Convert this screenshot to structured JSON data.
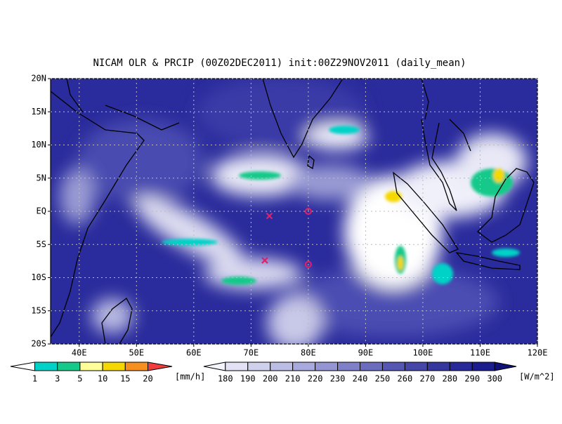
{
  "title": "NICAM OLR & PRCIP (00Z02DEC2011) init:00Z29NOV2011 (daily_mean)",
  "map": {
    "lon_range": [
      35,
      120
    ],
    "lat_range": [
      -20,
      20
    ],
    "lon_ticks": [
      {
        "value": 40,
        "label": "40E"
      },
      {
        "value": 50,
        "label": "50E"
      },
      {
        "value": 60,
        "label": "60E"
      },
      {
        "value": 70,
        "label": "70E"
      },
      {
        "value": 80,
        "label": "80E"
      },
      {
        "value": 90,
        "label": "90E"
      },
      {
        "value": 100,
        "label": "100E"
      },
      {
        "value": 110,
        "label": "110E"
      },
      {
        "value": 120,
        "label": "120E"
      }
    ],
    "lat_ticks": [
      {
        "value": 20,
        "label": "20N"
      },
      {
        "value": 15,
        "label": "15N"
      },
      {
        "value": 10,
        "label": "10N"
      },
      {
        "value": 5,
        "label": "5N"
      },
      {
        "value": 0,
        "label": "EQ"
      },
      {
        "value": -5,
        "label": "5S"
      },
      {
        "value": -10,
        "label": "10S"
      },
      {
        "value": -15,
        "label": "15S"
      },
      {
        "value": -20,
        "label": "20S"
      }
    ],
    "grid": true,
    "markers": [
      {
        "shape": "x",
        "lon": 73.2,
        "lat": -0.7,
        "color": "#e0206a"
      },
      {
        "shape": "x",
        "lon": 72.4,
        "lat": -7.4,
        "color": "#e0206a"
      },
      {
        "shape": "o",
        "lon": 80,
        "lat": 0,
        "color": "#e0206a"
      },
      {
        "shape": "o",
        "lon": 80,
        "lat": -8,
        "color": "#e0206a"
      }
    ]
  },
  "precip_colorbar": {
    "labels": [
      1,
      3,
      5,
      10,
      15,
      20
    ],
    "unit": "[mm/h]",
    "colors": [
      "#ffffff",
      "#00d2c8",
      "#14c98a",
      "#ffff9a",
      "#f5d800",
      "#f5901e",
      "#f03c3c"
    ]
  },
  "olr_colorbar": {
    "labels": [
      180,
      190,
      200,
      210,
      220,
      230,
      240,
      250,
      260,
      270,
      280,
      290,
      300
    ],
    "unit": "[W/m^2]",
    "colors": [
      "#f4f4fc",
      "#e2e2f4",
      "#cfd0ec",
      "#bcbde4",
      "#a8a9dc",
      "#9495d2",
      "#7f80c8",
      "#6b6cbd",
      "#5657b2",
      "#4546a8",
      "#35369e",
      "#27289a",
      "#1b1c8e",
      "#101078"
    ]
  }
}
